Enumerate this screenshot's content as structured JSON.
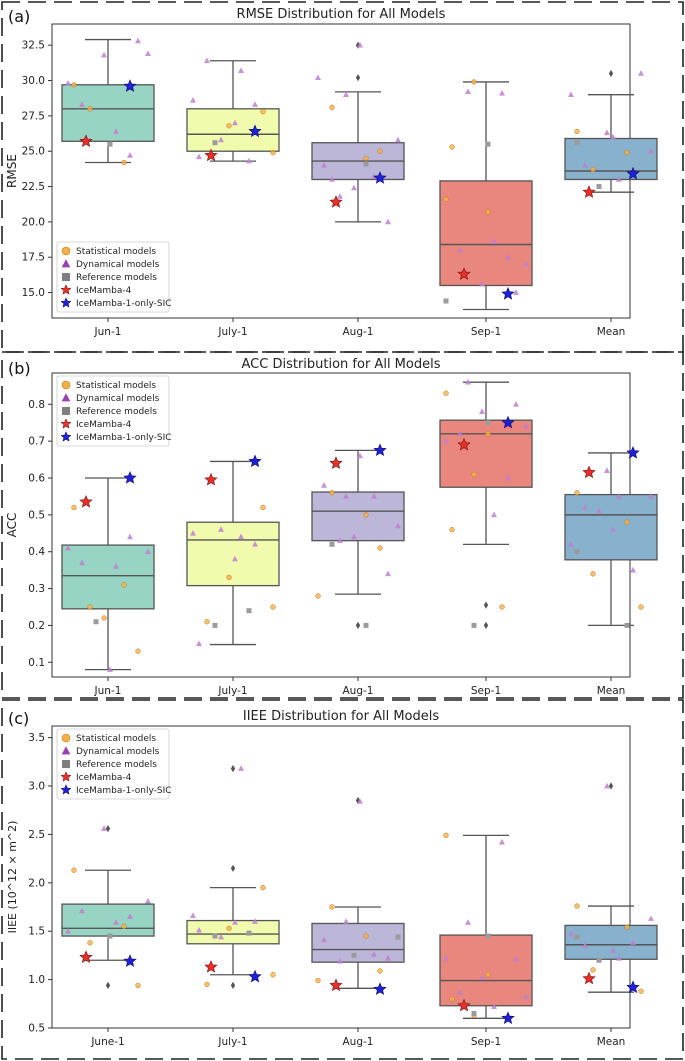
{
  "chart_data": [
    {
      "panel_label": "(a)",
      "type": "box",
      "title": "RMSE Distribution for All Models",
      "ylabel": "RMSE",
      "ylim": [
        13.2,
        34.0
      ],
      "yticks": [
        15.0,
        17.5,
        20.0,
        22.5,
        25.0,
        27.5,
        30.0,
        32.5
      ],
      "ytick_labels": [
        "15.0",
        "17.5",
        "20.0",
        "22.5",
        "25.0",
        "27.5",
        "30.0",
        "32.5"
      ],
      "legend_position": "bottom-left",
      "categories": [
        "Jun-1",
        "July-1",
        "Aug-1",
        "Sep-1",
        "Mean"
      ],
      "boxes": [
        {
          "min": 24.2,
          "q1": 25.7,
          "median": 28.0,
          "q3": 29.7,
          "max": 32.9,
          "fliers": []
        },
        {
          "min": 24.3,
          "q1": 25.0,
          "median": 26.2,
          "q3": 28.0,
          "max": 31.4,
          "fliers": []
        },
        {
          "min": 20.0,
          "q1": 23.0,
          "median": 24.3,
          "q3": 25.6,
          "max": 29.2,
          "fliers": [
            30.2,
            32.5
          ]
        },
        {
          "min": 13.8,
          "q1": 15.5,
          "median": 18.4,
          "q3": 22.9,
          "max": 29.9,
          "fliers": []
        },
        {
          "min": 22.1,
          "q1": 23.0,
          "median": 23.6,
          "q3": 25.9,
          "max": 29.0,
          "fliers": [
            30.5
          ]
        }
      ],
      "statistical": [
        [
          29.7,
          24.2,
          28.0
        ],
        [
          27.8,
          26.8,
          24.9
        ],
        [
          28.1,
          24.5,
          25.0
        ],
        [
          21.6,
          20.7,
          29.9,
          25.3
        ],
        [
          26.4,
          24.9,
          23.7
        ]
      ],
      "dynamical": [
        [
          32.8,
          31.8,
          31.9,
          28.3,
          26.4,
          24.7,
          29.8
        ],
        [
          31.4,
          30.7,
          28.3,
          28.6,
          27.0,
          25.8,
          24.6,
          24.3
        ],
        [
          30.2,
          32.5,
          29.0,
          24.0,
          23.2,
          21.8,
          20.0,
          22.4,
          25.8,
          23.0
        ],
        [
          29.1,
          29.2,
          15.0,
          15.6,
          17.0,
          18.0,
          18.6,
          17.5
        ],
        [
          30.5,
          26.3,
          25.0,
          24.0,
          23.0,
          23.5,
          29.0,
          26.0
        ]
      ],
      "reference": [
        [
          25.5
        ],
        [
          25.6
        ],
        [
          24.1
        ],
        [
          14.4,
          25.5
        ],
        [
          22.5,
          25.6
        ]
      ],
      "icemamba4": [
        25.7,
        24.7,
        21.4,
        16.3,
        22.1
      ],
      "icemamba_sic": [
        29.6,
        26.4,
        23.1,
        14.9,
        23.4
      ]
    },
    {
      "panel_label": "(b)",
      "type": "box",
      "title": "ACC Distribution for All Models",
      "ylabel": "ACC",
      "ylim": [
        0.06,
        0.885
      ],
      "yticks": [
        0.1,
        0.2,
        0.3,
        0.4,
        0.5,
        0.6,
        0.7,
        0.8
      ],
      "ytick_labels": [
        "0.1",
        "0.2",
        "0.3",
        "0.4",
        "0.5",
        "0.6",
        "0.7",
        "0.8"
      ],
      "legend_position": "top-left",
      "categories": [
        "Jun-1",
        "July-1",
        "Aug-1",
        "Sep-1",
        "Mean"
      ],
      "boxes": [
        {
          "min": 0.08,
          "q1": 0.245,
          "median": 0.335,
          "q3": 0.418,
          "max": 0.6,
          "fliers": []
        },
        {
          "min": 0.148,
          "q1": 0.308,
          "median": 0.432,
          "q3": 0.48,
          "max": 0.645,
          "fliers": []
        },
        {
          "min": 0.285,
          "q1": 0.43,
          "median": 0.51,
          "q3": 0.562,
          "max": 0.675,
          "fliers": [
            0.2
          ]
        },
        {
          "min": 0.42,
          "q1": 0.575,
          "median": 0.72,
          "q3": 0.757,
          "max": 0.86,
          "fliers": [
            0.255,
            0.2
          ]
        },
        {
          "min": 0.2,
          "q1": 0.378,
          "median": 0.5,
          "q3": 0.555,
          "max": 0.668,
          "fliers": []
        }
      ],
      "statistical": [
        [
          0.52,
          0.31,
          0.25,
          0.13,
          0.22
        ],
        [
          0.52,
          0.33,
          0.25,
          0.21
        ],
        [
          0.56,
          0.5,
          0.41,
          0.28
        ],
        [
          0.83,
          0.72,
          0.61,
          0.46,
          0.25
        ],
        [
          0.56,
          0.48,
          0.34,
          0.25
        ]
      ],
      "dynamical": [
        [
          0.4,
          0.37,
          0.36,
          0.44,
          0.41,
          0.08
        ],
        [
          0.44,
          0.42,
          0.45,
          0.38,
          0.46,
          0.15
        ],
        [
          0.66,
          0.55,
          0.58,
          0.55,
          0.43,
          0.34,
          0.44,
          0.47
        ],
        [
          0.86,
          0.8,
          0.78,
          0.74,
          0.72,
          0.5,
          0.6,
          0.7
        ],
        [
          0.62,
          0.55,
          0.52,
          0.55,
          0.35,
          0.42,
          0.46,
          0.51
        ]
      ],
      "reference": [
        [
          0.21
        ],
        [
          0.24,
          0.2
        ],
        [
          0.42,
          0.2
        ],
        [
          0.75,
          0.2
        ],
        [
          0.4,
          0.2
        ]
      ],
      "icemamba4": [
        0.535,
        0.595,
        0.64,
        0.69,
        0.615
      ],
      "icemamba_sic": [
        0.6,
        0.645,
        0.675,
        0.75,
        0.668
      ]
    },
    {
      "panel_label": "(c)",
      "type": "box",
      "title": "IIEE Distribution for All Models",
      "ylabel": "IIEE (10^12 × m^2)",
      "ylim": [
        0.5,
        3.62
      ],
      "yticks": [
        0.5,
        1.0,
        1.5,
        2.0,
        2.5,
        3.0,
        3.5
      ],
      "ytick_labels": [
        "0.5",
        "1.0",
        "1.5",
        "2.0",
        "2.5",
        "3.0",
        "3.5"
      ],
      "legend_position": "top-left",
      "categories": [
        "June-1",
        "July-1",
        "Aug-1",
        "Sep-1",
        "Mean"
      ],
      "boxes": [
        {
          "min": 1.2,
          "q1": 1.45,
          "median": 1.53,
          "q3": 1.78,
          "max": 2.13,
          "fliers": [
            2.56,
            0.94
          ]
        },
        {
          "min": 1.05,
          "q1": 1.37,
          "median": 1.47,
          "q3": 1.61,
          "max": 1.95,
          "fliers": [
            3.18,
            2.15,
            0.94
          ]
        },
        {
          "min": 0.91,
          "q1": 1.18,
          "median": 1.31,
          "q3": 1.58,
          "max": 1.75,
          "fliers": [
            2.85
          ]
        },
        {
          "min": 0.6,
          "q1": 0.73,
          "median": 0.99,
          "q3": 1.46,
          "max": 2.49,
          "fliers": []
        },
        {
          "min": 0.87,
          "q1": 1.21,
          "median": 1.36,
          "q3": 1.56,
          "max": 1.76,
          "fliers": [
            3.0
          ]
        }
      ],
      "statistical": [
        [
          2.13,
          1.55,
          1.38,
          0.94
        ],
        [
          1.95,
          1.53,
          1.05,
          0.95
        ],
        [
          1.75,
          1.45,
          1.09,
          0.99
        ],
        [
          2.49,
          1.05,
          0.63,
          0.8
        ],
        [
          1.76,
          1.54,
          1.1,
          0.88
        ]
      ],
      "dynamical": [
        [
          2.56,
          1.81,
          1.71,
          1.59,
          1.65,
          1.5
        ],
        [
          3.18,
          1.6,
          1.66,
          1.59,
          1.44,
          1.51
        ],
        [
          2.84,
          1.6,
          1.41,
          1.26,
          1.19,
          1.22
        ],
        [
          2.42,
          1.59,
          1.21,
          1.02,
          0.82,
          0.87,
          0.72,
          0.61,
          1.22
        ],
        [
          3.0,
          1.63,
          1.35,
          1.22,
          1.38,
          1.47,
          1.3
        ]
      ],
      "reference": [
        [
          1.45
        ],
        [
          1.48,
          1.45
        ],
        [
          1.25,
          1.44
        ],
        [
          1.45,
          0.65
        ],
        [
          1.2,
          1.44
        ]
      ],
      "icemamba4": [
        1.23,
        1.13,
        0.94,
        0.73,
        1.01
      ],
      "icemamba_sic": [
        1.19,
        1.03,
        0.9,
        0.6,
        0.92
      ]
    }
  ],
  "legend": {
    "statistical": "Statistical models",
    "dynamical": "Dynamical models",
    "reference": "Reference models",
    "icemamba4": "IceMamba-4",
    "icemamba_sic": "IceMamba-1-only-SIC"
  },
  "colors": {
    "box_fills": [
      "#97d4c4",
      "#f1fbad",
      "#bcb6d8",
      "#e9867e",
      "#88b1cd"
    ],
    "statistical": "#f5b04a",
    "dynamical": "#c07fd0",
    "reference": "#9b9b9b",
    "icemamba4": "#e8302a",
    "icemamba_sic": "#2020d8",
    "whisker": "#555555"
  }
}
